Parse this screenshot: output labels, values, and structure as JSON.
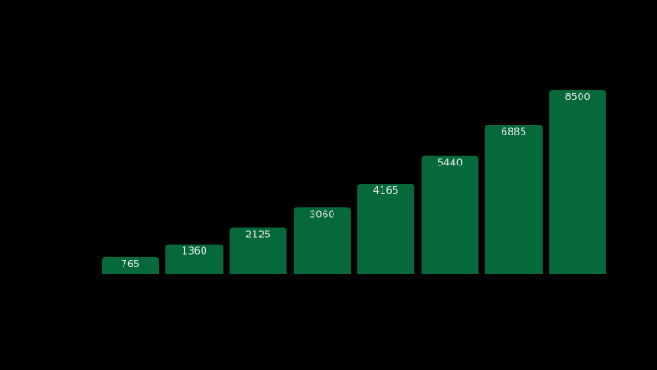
{
  "chart_data": {
    "type": "bar",
    "values": [
      765,
      1360,
      2125,
      3060,
      4165,
      5440,
      6885,
      8500
    ],
    "color": "#05693a",
    "label_color": "#e6e6e6",
    "background": "#000000"
  }
}
